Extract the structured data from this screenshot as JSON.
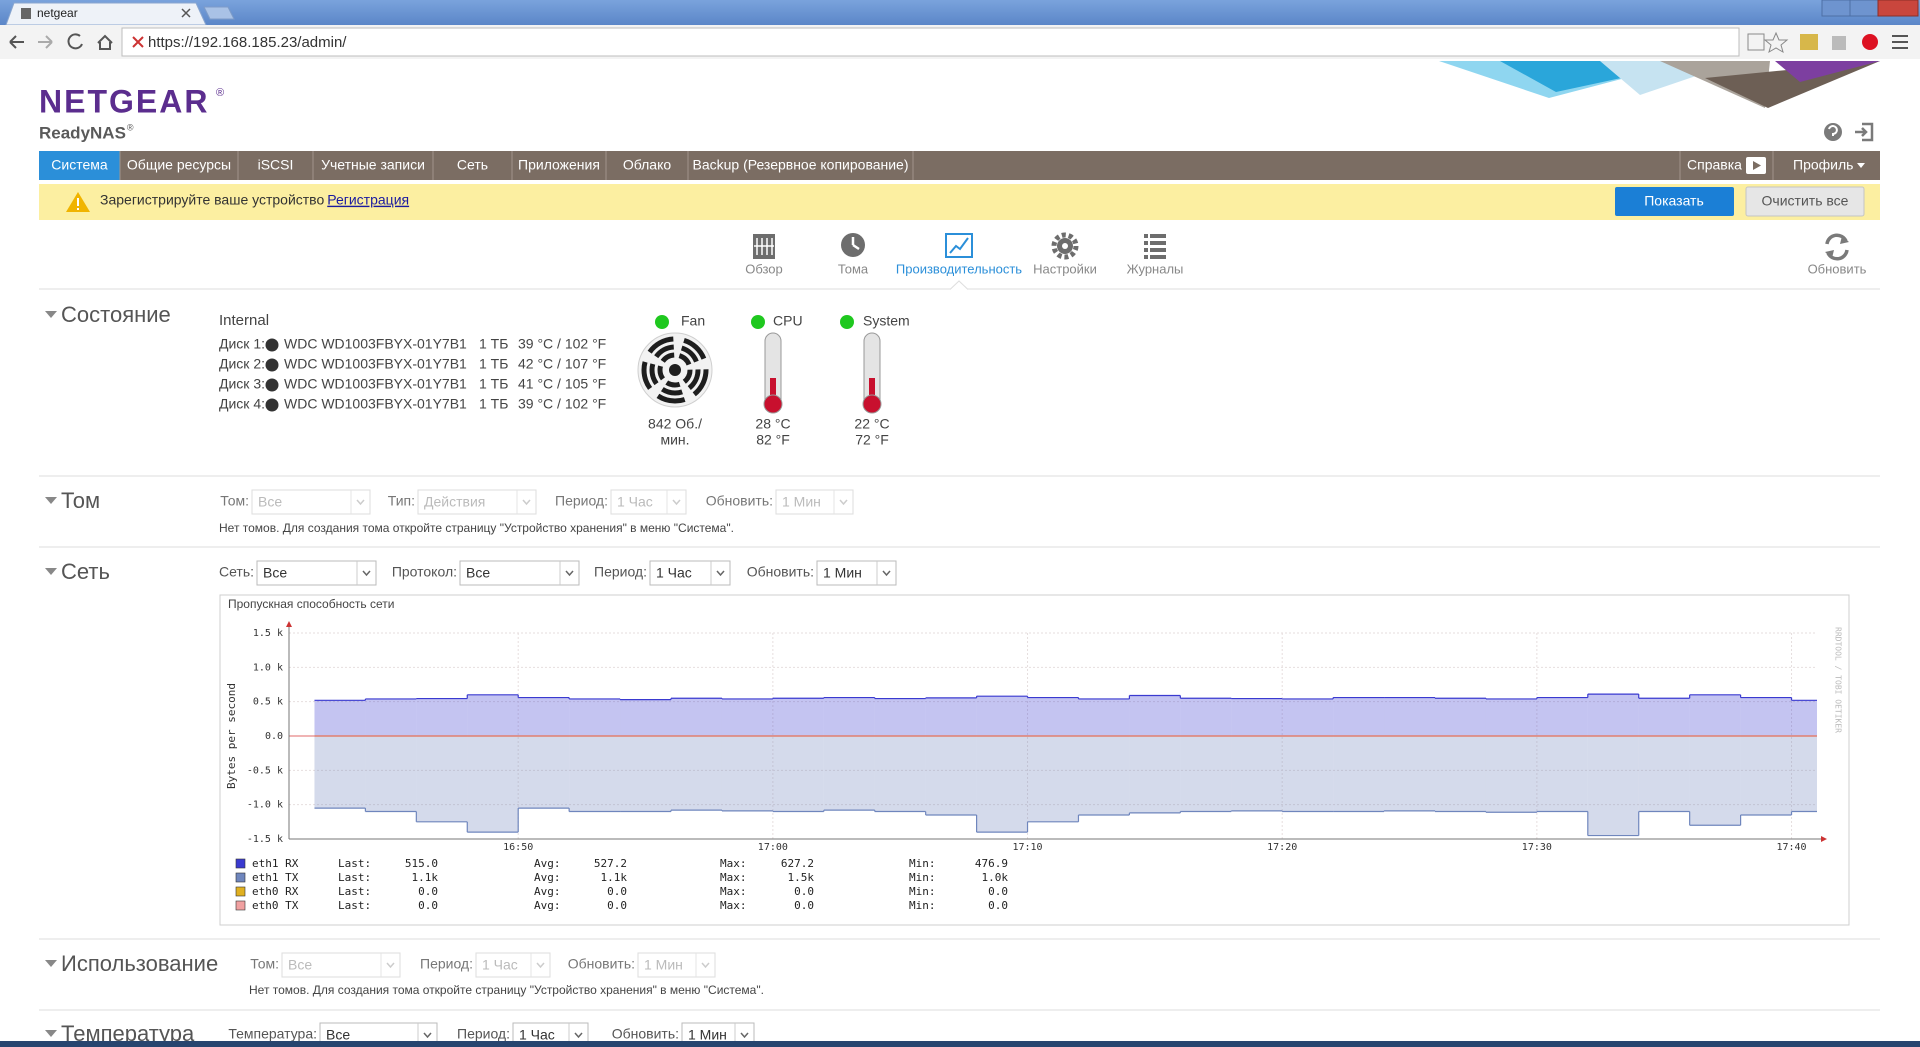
{
  "browser": {
    "tab": "netgear",
    "url": "https://192.168.185.23/admin/"
  },
  "header": {
    "brand": "NETGEAR",
    "brand_mark": "®",
    "product": "ReadyNAS",
    "product_mark": "®"
  },
  "nav": {
    "items": [
      "Система",
      "Общие ресурсы",
      "iSCSI",
      "Учетные записи",
      "Сеть",
      "Приложения",
      "Облако",
      "Backup (Резервное копирование)"
    ],
    "active": 0,
    "right": [
      "Справка",
      "Профиль"
    ]
  },
  "notice": {
    "text": "Зарегистрируйте ваше устройство",
    "link": "Регистрация",
    "buttons": [
      "Показать",
      "Очистить все"
    ]
  },
  "tabs": {
    "items": [
      "Обзор",
      "Тома",
      "Производительность",
      "Настройки",
      "Журналы"
    ],
    "active": 2,
    "refresh": "Обновить"
  },
  "status": {
    "title": "Состояние",
    "group": "Internal",
    "disks": [
      {
        "label": "Диск 1:",
        "model": "WDC WD1003FBYX-01Y7B1",
        "size": "1 ТБ",
        "temp": "39 °C / 102 °F"
      },
      {
        "label": "Диск 2:",
        "model": "WDC WD1003FBYX-01Y7B1",
        "size": "1 ТБ",
        "temp": "42 °C / 107 °F"
      },
      {
        "label": "Диск 3:",
        "model": "WDC WD1003FBYX-01Y7B1",
        "size": "1 ТБ",
        "temp": "41 °C / 105 °F"
      },
      {
        "label": "Диск 4:",
        "model": "WDC WD1003FBYX-01Y7B1",
        "size": "1 ТБ",
        "temp": "39 °C / 102 °F"
      }
    ],
    "sensors": [
      {
        "name": "Fan",
        "value": [
          "842 Об./",
          "мин."
        ]
      },
      {
        "name": "CPU",
        "value": [
          "28 °C",
          "82 °F"
        ]
      },
      {
        "name": "System",
        "value": [
          "22 °C",
          "72 °F"
        ]
      }
    ]
  },
  "volume": {
    "title": "Том",
    "filters": [
      {
        "label": "Том:",
        "value": "Все"
      },
      {
        "label": "Тип:",
        "value": "Действия"
      },
      {
        "label": "Период:",
        "value": "1 Час"
      },
      {
        "label": "Обновить:",
        "value": "1 Мин"
      }
    ],
    "note": "Нет томов. Для создания тома откройте страницу \"Устройство хранения\" в меню \"Система\"."
  },
  "network": {
    "title": "Сеть",
    "filters": [
      {
        "label": "Сеть:",
        "value": "Все"
      },
      {
        "label": "Протокол:",
        "value": "Все"
      },
      {
        "label": "Период:",
        "value": "1 Час"
      },
      {
        "label": "Обновить:",
        "value": "1 Мин"
      }
    ]
  },
  "chart_data": {
    "type": "step-area",
    "title": "Пропускная способность сети",
    "y_label": "Bytes per second",
    "side_label": "RRDTOOL / TOBI OETIKER",
    "x": [
      "16:42",
      "16:44",
      "16:46",
      "16:48",
      "16:50",
      "16:52",
      "16:54",
      "16:56",
      "16:58",
      "17:00",
      "17:02",
      "17:04",
      "17:06",
      "17:08",
      "17:10",
      "17:12",
      "17:14",
      "17:16",
      "17:18",
      "17:20",
      "17:22",
      "17:24",
      "17:26",
      "17:28",
      "17:30",
      "17:32",
      "17:34",
      "17:36",
      "17:38",
      "17:40"
    ],
    "xlim": [
      "16:41",
      "17:41"
    ],
    "xticks": [
      "16:50",
      "17:00",
      "17:10",
      "17:20",
      "17:30",
      "17:40"
    ],
    "ylim": [
      -1500,
      1500
    ],
    "yticks": [
      {
        "value": 1500,
        "label": "1.5 k"
      },
      {
        "value": 1000,
        "label": "1.0 k"
      },
      {
        "value": 500,
        "label": "0.5 k"
      },
      {
        "value": 0,
        "label": "0.0"
      },
      {
        "value": -500,
        "label": "-0.5 k"
      },
      {
        "value": -1000,
        "label": "-1.0 k"
      },
      {
        "value": -1500,
        "label": "-1.5 k"
      }
    ],
    "grid": true,
    "stat_labels": [
      "Last:",
      "Avg:",
      "Max:",
      "Min:"
    ],
    "series": [
      {
        "name": "eth1 RX",
        "color": "#3a3ad0",
        "stats": [
          "515.0",
          "527.2",
          "627.2",
          "476.9"
        ],
        "values": [
          520,
          540,
          545,
          600,
          560,
          540,
          530,
          550,
          540,
          550,
          560,
          545,
          555,
          580,
          560,
          540,
          590,
          550,
          545,
          540,
          560,
          560,
          550,
          540,
          560,
          610,
          550,
          600,
          560,
          520
        ]
      },
      {
        "name": "eth1 TX",
        "color": "#6f86bd",
        "stats": [
          "1.1k",
          "1.1k",
          "1.5k",
          "1.0k"
        ],
        "values": [
          -1050,
          -1100,
          -1250,
          -1400,
          -1050,
          -1100,
          -1100,
          -1080,
          -1090,
          -1100,
          -1080,
          -1100,
          -1150,
          -1400,
          -1250,
          -1150,
          -1120,
          -1100,
          -1090,
          -1100,
          -1100,
          -1090,
          -1100,
          -1110,
          -1100,
          -1450,
          -1100,
          -1300,
          -1150,
          -1100
        ]
      },
      {
        "name": "eth0 RX",
        "color": "#e0b020",
        "stats": [
          "0.0",
          "0.0",
          "0.0",
          "0.0"
        ],
        "values": [
          0,
          0,
          0,
          0,
          0,
          0,
          0,
          0,
          0,
          0,
          0,
          0,
          0,
          0,
          0,
          0,
          0,
          0,
          0,
          0,
          0,
          0,
          0,
          0,
          0,
          0,
          0,
          0,
          0,
          0
        ]
      },
      {
        "name": "eth0 TX",
        "color": "#f0a0a0",
        "stats": [
          "0.0",
          "0.0",
          "0.0",
          "0.0"
        ],
        "values": [
          0,
          0,
          0,
          0,
          0,
          0,
          0,
          0,
          0,
          0,
          0,
          0,
          0,
          0,
          0,
          0,
          0,
          0,
          0,
          0,
          0,
          0,
          0,
          0,
          0,
          0,
          0,
          0,
          0,
          0
        ]
      }
    ]
  },
  "usage": {
    "title": "Использование",
    "filters": [
      {
        "label": "Том:",
        "value": "Все"
      },
      {
        "label": "Период:",
        "value": "1 Час"
      },
      {
        "label": "Обновить:",
        "value": "1 Мин"
      }
    ],
    "note": "Нет томов. Для создания тома откройте страницу \"Устройство хранения\" в меню \"Система\"."
  },
  "temperature": {
    "title": "Температура",
    "filters": [
      {
        "label": "Температура:",
        "value": "Все"
      },
      {
        "label": "Период:",
        "value": "1 Час"
      },
      {
        "label": "Обновить:",
        "value": "1 Мин"
      }
    ]
  }
}
